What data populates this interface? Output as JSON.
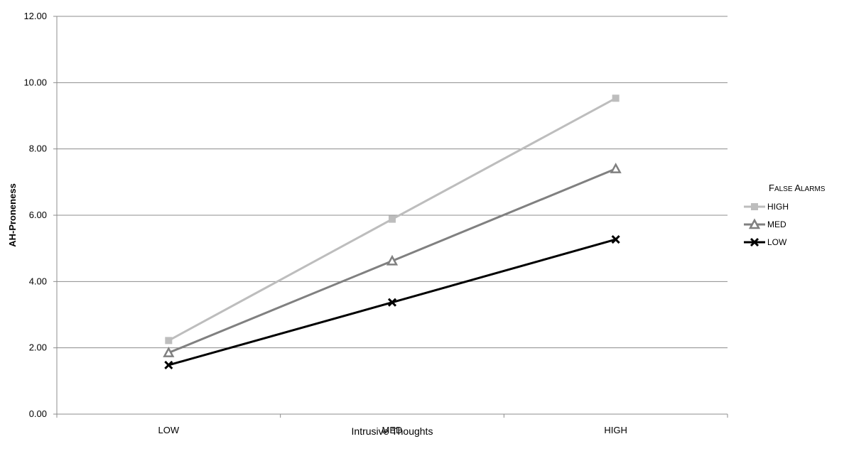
{
  "chart_data": {
    "type": "line",
    "title": "",
    "xlabel": "Intrusive Thoughts",
    "ylabel": "AH-Proneness",
    "categories": [
      "LOW",
      "MED",
      "HIGH"
    ],
    "ylim": [
      0,
      12
    ],
    "yticks": [
      "0.00",
      "2.00",
      "4.00",
      "6.00",
      "8.00",
      "10.00",
      "12.00"
    ],
    "grid": true,
    "legend_title": "False Alarms",
    "legend_position": "right",
    "series": [
      {
        "name": "HIGH",
        "values": [
          2.22,
          5.88,
          9.53
        ],
        "color": "#bdbdbd",
        "marker": "square"
      },
      {
        "name": "MED",
        "values": [
          1.85,
          4.62,
          7.4
        ],
        "color": "#808080",
        "marker": "triangle"
      },
      {
        "name": "LOW",
        "values": [
          1.48,
          3.37,
          5.27
        ],
        "color": "#000000",
        "marker": "x"
      }
    ]
  }
}
